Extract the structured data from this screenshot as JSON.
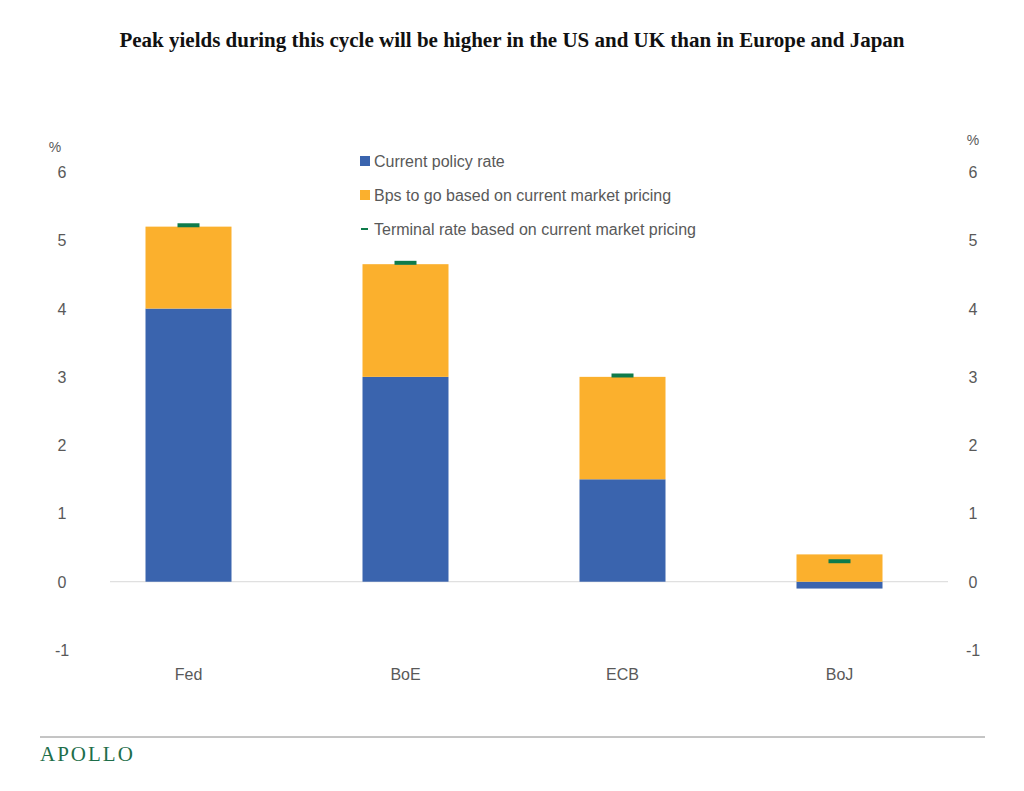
{
  "chart_data": {
    "type": "bar",
    "title": "Peak yields during this cycle will be higher in the US and UK than in Europe and Japan",
    "y_label": "%",
    "y2_label": "%",
    "source": "APOLLO",
    "categories": [
      "Fed",
      "BoE",
      "ECB",
      "BoJ"
    ],
    "stacked": true,
    "series": [
      {
        "name": "Current policy rate",
        "color": "#3a64ae",
        "type": "bar",
        "values": [
          4.0,
          3.0,
          1.5,
          -0.1
        ]
      },
      {
        "name": "Bps to go based on current market pricing",
        "color": "#fbb02d",
        "type": "bar",
        "values": [
          1.2,
          1.65,
          1.5,
          0.4
        ]
      },
      {
        "name": "Terminal rate based on current market pricing",
        "color": "#0e7b4b",
        "type": "scatter",
        "marker": "dash",
        "line_style": "none",
        "values": [
          5.22,
          4.67,
          3.02,
          0.3
        ]
      }
    ],
    "ylim": [
      -1,
      6
    ],
    "yticks": [
      -1,
      0,
      1,
      2,
      3,
      4,
      5,
      6
    ],
    "y2lim": [
      -1,
      6
    ],
    "y2ticks": [
      -1,
      0,
      1,
      2,
      3,
      4,
      5,
      6
    ],
    "grid": false,
    "legend": "top"
  }
}
